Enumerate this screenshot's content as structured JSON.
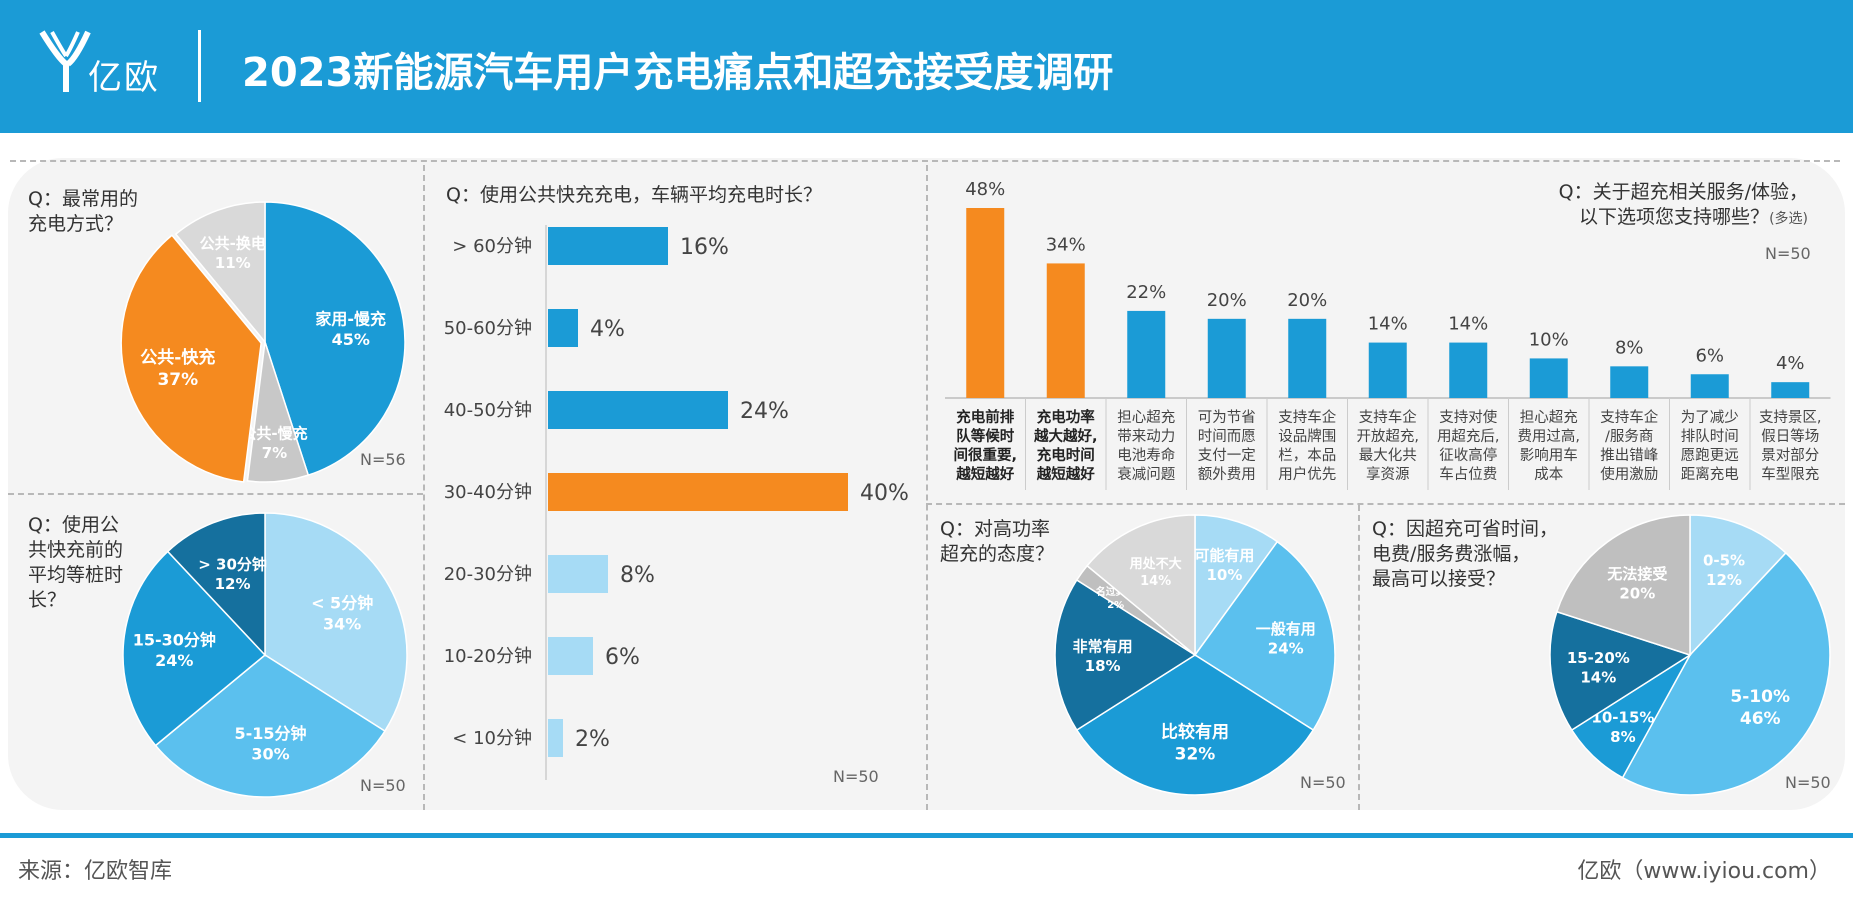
{
  "header": {
    "logo_text": "亿欧",
    "title": "2023新能源汽车用户充电痛点和超充接受度调研"
  },
  "footer": {
    "source": "来源：亿欧智库",
    "brand": "亿欧（www.iyiou.com）"
  },
  "colors": {
    "primary_blue": "#1b9bd6",
    "orange": "#f58a1f",
    "light_blue": "#a6dbf5",
    "sky_blue": "#5bc0ee",
    "dark_blue": "#1a74a3",
    "grey": "#d6d6d6"
  },
  "chart_data": [
    {
      "id": "charging_method",
      "type": "pie",
      "question": "Q：最常用的\n充电方式？",
      "n": "N=56",
      "slices": [
        {
          "label": "家用-慢充",
          "value": 45,
          "value_label": "45%",
          "color": "#1b9bd6"
        },
        {
          "label": "公共-慢充",
          "value": 7,
          "value_label": "7%",
          "color": "#c8c8c8"
        },
        {
          "label": "公共-快充",
          "value": 37,
          "value_label": "37%",
          "color": "#f58a1f"
        },
        {
          "label": "公共-换电",
          "value": 11,
          "value_label": "11%",
          "color": "#d9d9d9"
        }
      ]
    },
    {
      "id": "queue_time",
      "type": "pie",
      "question": "Q：使用公\n共快充前的\n平均等桩时\n长？",
      "n": "N=50",
      "slices": [
        {
          "label": "< 5分钟",
          "value": 34,
          "value_label": "34%",
          "color": "#a6dbf5"
        },
        {
          "label": "5-15分钟",
          "value": 30,
          "value_label": "30%",
          "color": "#5bc0ee"
        },
        {
          "label": "15-30分钟",
          "value": 24,
          "value_label": "24%",
          "color": "#1b9bd6"
        },
        {
          "label": "> 30分钟",
          "value": 12,
          "value_label": "12%",
          "color": "#15709e"
        }
      ]
    },
    {
      "id": "avg_charge_duration",
      "type": "bar",
      "orientation": "horizontal",
      "question": "Q：使用公共快充充电，车辆平均充电时长？",
      "n": "N=50",
      "categories": [
        "> 60分钟",
        "50-60分钟",
        "40-50分钟",
        "30-40分钟",
        "20-30分钟",
        "10-20分钟",
        "< 10分钟"
      ],
      "values": [
        16,
        4,
        24,
        40,
        8,
        6,
        2
      ],
      "value_labels": [
        "16%",
        "4%",
        "24%",
        "40%",
        "8%",
        "6%",
        "2%"
      ],
      "colors": [
        "#1b9bd6",
        "#1b9bd6",
        "#1b9bd6",
        "#f58a1f",
        "#a6dbf5",
        "#a6dbf5",
        "#a6dbf5"
      ],
      "xlim": [
        0,
        40
      ]
    },
    {
      "id": "supercharge_services",
      "type": "bar",
      "orientation": "vertical",
      "question_line1": "Q：关于超充相关服务/体验，",
      "question_line2": "以下选项您支持哪些？",
      "question_note": "(多选)",
      "n": "N=50",
      "categories": [
        "充电前排队等候时间很重要,越短越好",
        "充电功率越大越好,充电时间越短越好",
        "担心超充带来动力电池寿命衰减问题",
        "可为节省时间而愿支付一定额外费用",
        "支持车企设品牌围栏，本品用户优先",
        "支持车企开放超充,最大化共享资源",
        "支持对使用超充后,征收高停车占位费",
        "担心超充费用过高,影响用车成本",
        "支持车企/服务商推出错峰使用激励",
        "为了减少排队时间愿跑更远距离充电",
        "支持景区,假日等场景对部分车型限充"
      ],
      "category_lines": [
        [
          "充电前排",
          "队等候时",
          "间很重要,",
          "越短越好"
        ],
        [
          "充电功率",
          "越大越好,",
          "充电时间",
          "越短越好"
        ],
        [
          "担心超充",
          "带来动力",
          "电池寿命",
          "衰减问题"
        ],
        [
          "可为节省",
          "时间而愿",
          "支付一定",
          "额外费用"
        ],
        [
          "支持车企",
          "设品牌围",
          "栏，本品",
          "用户优先"
        ],
        [
          "支持车企",
          "开放超充,",
          "最大化共",
          "享资源"
        ],
        [
          "支持对使",
          "用超充后,",
          "征收高停",
          "车占位费"
        ],
        [
          "担心超充",
          "费用过高,",
          "影响用车",
          "成本"
        ],
        [
          "支持车企",
          "/服务商",
          "推出错峰",
          "使用激励"
        ],
        [
          "为了减少",
          "排队时间",
          "愿跑更远",
          "距离充电"
        ],
        [
          "支持景区,",
          "假日等场",
          "景对部分",
          "车型限充"
        ]
      ],
      "values": [
        48,
        34,
        22,
        20,
        20,
        14,
        14,
        10,
        8,
        6,
        4
      ],
      "value_labels": [
        "48%",
        "34%",
        "22%",
        "20%",
        "20%",
        "14%",
        "14%",
        "10%",
        "8%",
        "6%",
        "4%"
      ],
      "highlight": [
        true,
        true,
        false,
        false,
        false,
        false,
        false,
        false,
        false,
        false,
        false
      ],
      "ylim": [
        0,
        48
      ]
    },
    {
      "id": "attitude_high_power",
      "type": "pie",
      "question": "Q：对高功率\n超充的态度？",
      "n": "N=50",
      "slices": [
        {
          "label": "可能有用",
          "value": 10,
          "value_label": "10%",
          "color": "#a6dbf5"
        },
        {
          "label": "一般有用",
          "value": 24,
          "value_label": "24%",
          "color": "#5bc0ee"
        },
        {
          "label": "比较有用",
          "value": 32,
          "value_label": "32%",
          "color": "#1b9bd6"
        },
        {
          "label": "非常有用",
          "value": 18,
          "value_label": "18%",
          "color": "#15709e"
        },
        {
          "label": "名过其实",
          "value": 2,
          "value_label": "2%",
          "color": "#bfbfbf"
        },
        {
          "label": "用处不大",
          "value": 14,
          "value_label": "14%",
          "color": "#d9d9d9"
        }
      ]
    },
    {
      "id": "acceptable_price_increase",
      "type": "pie",
      "question": "Q：因超充可省时间，\n电费/服务费涨幅，\n最高可以接受？",
      "n": "N=50",
      "slices": [
        {
          "label": "0-5%",
          "value": 12,
          "value_label": "12%",
          "color": "#a6dbf5"
        },
        {
          "label": "5-10%",
          "value": 46,
          "value_label": "46%",
          "color": "#5bc0ee"
        },
        {
          "label": "10-15%",
          "value": 8,
          "value_label": "8%",
          "color": "#1b9bd6"
        },
        {
          "label": "15-20%",
          "value": 14,
          "value_label": "14%",
          "color": "#15709e"
        },
        {
          "label": "无法接受",
          "value": 20,
          "value_label": "20%",
          "color": "#bfbfbf"
        }
      ]
    }
  ]
}
